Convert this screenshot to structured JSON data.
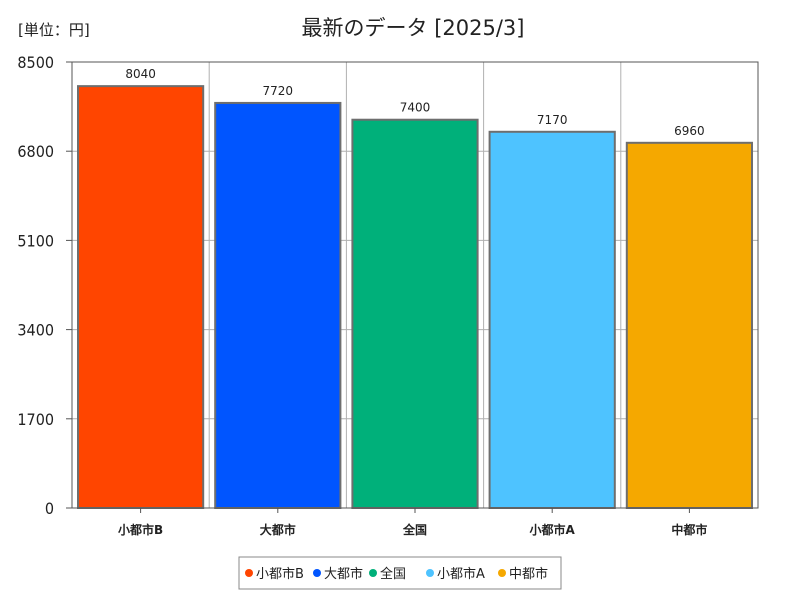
{
  "unit_label": "[単位：円]",
  "chart_data": {
    "type": "bar",
    "title": "最新のデータ [2025/3]",
    "categories": [
      "小都市B",
      "大都市",
      "全国",
      "小都市A",
      "中都市"
    ],
    "values": [
      8040,
      7720,
      7400,
      7170,
      6960
    ],
    "colors": [
      "#ff4500",
      "#0055ff",
      "#00b07a",
      "#4ec3ff",
      "#f5a800"
    ],
    "yticks": [
      "0",
      "1700",
      "3400",
      "5100",
      "6800",
      "8500"
    ],
    "ylim": [
      0,
      8500
    ],
    "grid": true,
    "legend": {
      "position": "bottom-center",
      "entries": [
        "小都市B",
        "大都市",
        "全国",
        "小都市A",
        "中都市"
      ]
    }
  }
}
